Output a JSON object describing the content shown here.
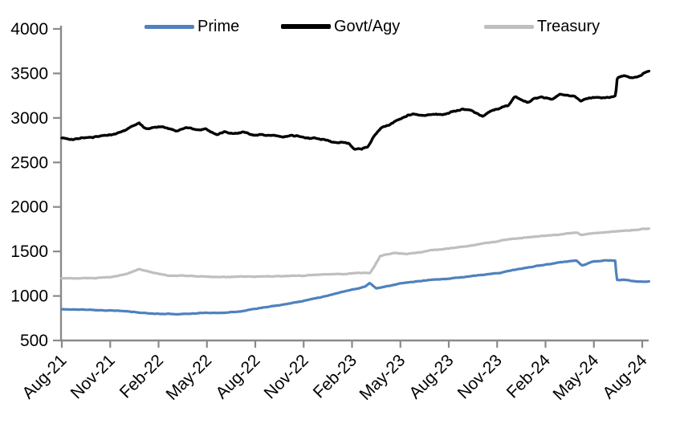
{
  "chart_data": {
    "type": "line",
    "title": "",
    "xlabel": "",
    "ylabel": "",
    "x_unit": "months since Aug-2021 (fractional = intra-month)",
    "x_tick_labels": [
      "Aug-21",
      "Nov-21",
      "Feb-22",
      "May-22",
      "Aug-22",
      "Nov-22",
      "Feb-23",
      "May-23",
      "Aug-23",
      "Nov-23",
      "Feb-24",
      "May-24",
      "Aug-24"
    ],
    "x_tick_step_months": 3,
    "y_ticks": [
      500,
      1000,
      1500,
      2000,
      2500,
      3000,
      3500,
      4000
    ],
    "ylim": [
      500,
      4000
    ],
    "xlim_months": [
      0,
      36.45
    ],
    "grid": false,
    "legend_position": "top",
    "axis_color": "#8A8A8A",
    "tick_label_color": "#000000",
    "series": [
      {
        "name": "Prime",
        "color": "#4F81BD",
        "stroke_width": 3.2,
        "noise": 6,
        "points": [
          [
            0,
            850
          ],
          [
            1,
            847
          ],
          [
            2,
            843
          ],
          [
            3,
            838
          ],
          [
            4,
            827
          ],
          [
            5,
            810
          ],
          [
            6,
            800
          ],
          [
            7,
            797
          ],
          [
            8,
            803
          ],
          [
            9,
            810
          ],
          [
            10,
            812
          ],
          [
            11,
            828
          ],
          [
            12,
            858
          ],
          [
            13,
            888
          ],
          [
            14,
            915
          ],
          [
            15,
            945
          ],
          [
            16,
            985
          ],
          [
            17,
            1030
          ],
          [
            17.6,
            1058
          ],
          [
            18.3,
            1082
          ],
          [
            18.8,
            1105
          ],
          [
            19.1,
            1148
          ],
          [
            19.5,
            1088
          ],
          [
            20.2,
            1110
          ],
          [
            21,
            1140
          ],
          [
            22,
            1163
          ],
          [
            23,
            1180
          ],
          [
            24,
            1195
          ],
          [
            25,
            1215
          ],
          [
            26,
            1232
          ],
          [
            27,
            1252
          ],
          [
            28,
            1290
          ],
          [
            29,
            1322
          ],
          [
            30,
            1352
          ],
          [
            31,
            1382
          ],
          [
            31.9,
            1398
          ],
          [
            32.25,
            1345
          ],
          [
            32.9,
            1385
          ],
          [
            33.6,
            1398
          ],
          [
            34.2,
            1396
          ],
          [
            34.32,
            1394
          ],
          [
            34.42,
            1178
          ],
          [
            34.9,
            1180
          ],
          [
            35.3,
            1165
          ],
          [
            36,
            1160
          ],
          [
            36.45,
            1162
          ]
        ]
      },
      {
        "name": "Govt/Agy",
        "color": "#000000",
        "stroke_width": 3.4,
        "noise": 13,
        "points": [
          [
            0,
            2775
          ],
          [
            0.7,
            2762
          ],
          [
            1.3,
            2785
          ],
          [
            2.2,
            2792
          ],
          [
            3,
            2812
          ],
          [
            3.7,
            2842
          ],
          [
            4.4,
            2912
          ],
          [
            4.8,
            2940
          ],
          [
            5.2,
            2876
          ],
          [
            5.8,
            2890
          ],
          [
            6.3,
            2902
          ],
          [
            7.1,
            2858
          ],
          [
            7.7,
            2892
          ],
          [
            8.4,
            2868
          ],
          [
            8.9,
            2888
          ],
          [
            9.6,
            2815
          ],
          [
            10.1,
            2850
          ],
          [
            10.7,
            2822
          ],
          [
            11.3,
            2840
          ],
          [
            12,
            2812
          ],
          [
            12.9,
            2806
          ],
          [
            13.8,
            2800
          ],
          [
            14.6,
            2790
          ],
          [
            15.4,
            2772
          ],
          [
            16.2,
            2762
          ],
          [
            16.8,
            2726
          ],
          [
            17.3,
            2736
          ],
          [
            17.8,
            2716
          ],
          [
            18.1,
            2655
          ],
          [
            18.6,
            2648
          ],
          [
            19,
            2682
          ],
          [
            19.4,
            2812
          ],
          [
            19.8,
            2882
          ],
          [
            20.3,
            2918
          ],
          [
            20.8,
            2975
          ],
          [
            21.4,
            3030
          ],
          [
            21.8,
            3048
          ],
          [
            22.4,
            3030
          ],
          [
            23,
            3046
          ],
          [
            23.6,
            3036
          ],
          [
            24.3,
            3076
          ],
          [
            24.8,
            3096
          ],
          [
            25.4,
            3080
          ],
          [
            26.1,
            3018
          ],
          [
            26.7,
            3078
          ],
          [
            27.2,
            3108
          ],
          [
            27.7,
            3135
          ],
          [
            28.1,
            3232
          ],
          [
            28.5,
            3200
          ],
          [
            28.9,
            3172
          ],
          [
            29.4,
            3222
          ],
          [
            29.8,
            3235
          ],
          [
            30.4,
            3212
          ],
          [
            30.9,
            3272
          ],
          [
            31.4,
            3262
          ],
          [
            31.8,
            3250
          ],
          [
            32.2,
            3198
          ],
          [
            32.6,
            3218
          ],
          [
            33.2,
            3228
          ],
          [
            33.8,
            3232
          ],
          [
            34.25,
            3240
          ],
          [
            34.35,
            3252
          ],
          [
            34.45,
            3448
          ],
          [
            34.9,
            3468
          ],
          [
            35.3,
            3445
          ],
          [
            35.8,
            3470
          ],
          [
            36.1,
            3500
          ],
          [
            36.45,
            3528
          ]
        ]
      },
      {
        "name": "Treasury",
        "color": "#BFBFBF",
        "stroke_width": 3.2,
        "noise": 7,
        "points": [
          [
            0,
            1200
          ],
          [
            1,
            1196
          ],
          [
            2,
            1200
          ],
          [
            3,
            1212
          ],
          [
            4,
            1248
          ],
          [
            4.8,
            1302
          ],
          [
            5.6,
            1262
          ],
          [
            6.6,
            1228
          ],
          [
            8,
            1220
          ],
          [
            10,
            1214
          ],
          [
            12,
            1220
          ],
          [
            14,
            1222
          ],
          [
            15,
            1230
          ],
          [
            16,
            1240
          ],
          [
            17,
            1246
          ],
          [
            18,
            1252
          ],
          [
            19.1,
            1258
          ],
          [
            19.4,
            1340
          ],
          [
            19.75,
            1452
          ],
          [
            20.6,
            1482
          ],
          [
            21.4,
            1474
          ],
          [
            22.2,
            1494
          ],
          [
            23.1,
            1514
          ],
          [
            24,
            1530
          ],
          [
            24.7,
            1548
          ],
          [
            25.5,
            1570
          ],
          [
            26.4,
            1596
          ],
          [
            27.2,
            1620
          ],
          [
            28,
            1642
          ],
          [
            29,
            1660
          ],
          [
            29.7,
            1672
          ],
          [
            30.5,
            1690
          ],
          [
            31.4,
            1702
          ],
          [
            31.95,
            1716
          ],
          [
            32.2,
            1684
          ],
          [
            32.6,
            1700
          ],
          [
            33,
            1706
          ],
          [
            34,
            1722
          ],
          [
            34.7,
            1732
          ],
          [
            35.5,
            1742
          ],
          [
            36.45,
            1758
          ]
        ]
      }
    ]
  }
}
